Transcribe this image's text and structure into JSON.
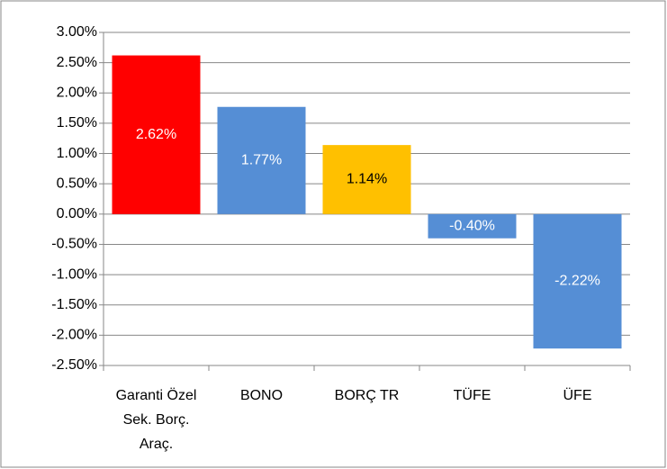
{
  "chart_data": {
    "type": "bar",
    "categories": [
      "Garanti Özel Sek. Borç. Araç.",
      "BONO",
      "BORÇ TR",
      "TÜFE",
      "ÜFE"
    ],
    "values": [
      2.62,
      1.77,
      1.14,
      -0.4,
      -2.22
    ],
    "value_labels": [
      "2.62%",
      "1.77%",
      "1.14%",
      "-0.40%",
      "-2.22%"
    ],
    "colors": [
      "#ff0000",
      "#558ed5",
      "#ffc000",
      "#558ed5",
      "#558ed5"
    ],
    "ylim": [
      -2.5,
      3.0
    ],
    "yticks": [
      {
        "value": -2.5,
        "label": "-2.50%"
      },
      {
        "value": -2.0,
        "label": "-2.00%"
      },
      {
        "value": -1.5,
        "label": "-1.50%"
      },
      {
        "value": -1.0,
        "label": "-1.00%"
      },
      {
        "value": -0.5,
        "label": "-0.50%"
      },
      {
        "value": 0,
        "label": "0.00%"
      },
      {
        "value": 0.5,
        "label": "0.50%"
      },
      {
        "value": 1.0,
        "label": "1.00%"
      },
      {
        "value": 1.5,
        "label": "1.50%"
      },
      {
        "value": 2.0,
        "label": "2.00%"
      },
      {
        "value": 2.5,
        "label": "2.50%"
      },
      {
        "value": 3.0,
        "label": "3.00%"
      }
    ],
    "grid": true
  }
}
